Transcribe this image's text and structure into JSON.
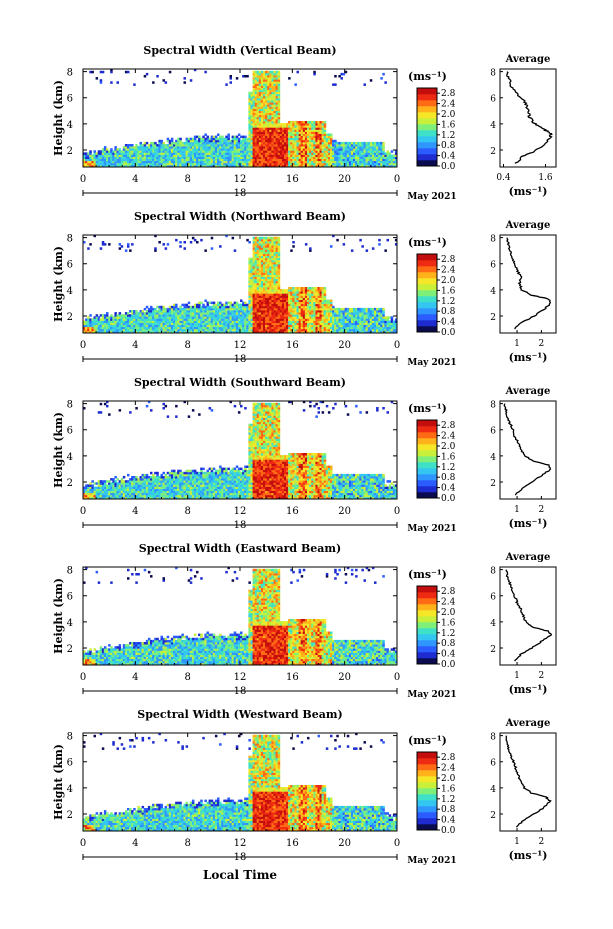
{
  "figure": {
    "xlabel": "Local Time",
    "date_label": "May 2021",
    "colorbar_unit": "(ms⁻¹)",
    "average_title": "Average",
    "average_unit": "(ms⁻¹)",
    "ylabel": "Height (km)"
  },
  "colormap": [
    "#0b0b50",
    "#1d2bd0",
    "#2a5cff",
    "#2f95ff",
    "#33c6f0",
    "#3fe0c8",
    "#7ef07a",
    "#c8f03a",
    "#f5e628",
    "#ffb21a",
    "#ff6a14",
    "#ee2a12",
    "#c40e0e"
  ],
  "chart_data": [
    {
      "type": "heatmap",
      "title": "Spectral Width (Vertical Beam)",
      "xlim": [
        0,
        24
      ],
      "ylim": [
        0.7,
        8.2
      ],
      "x_ticks": [
        "0",
        "4",
        "8",
        "12",
        "16",
        "20",
        "0"
      ],
      "x_ticks_values": [
        0,
        4,
        8,
        12,
        16,
        20,
        24
      ],
      "day_label": "18",
      "y_ticks": [
        "2",
        "4",
        "6",
        "8"
      ],
      "colorbar_ticks": [
        "0.0",
        "0.4",
        "0.8",
        "1.2",
        "1.6",
        "2.0",
        "2.4",
        "2.8"
      ],
      "clim": [
        0,
        3.0
      ],
      "average_profile": {
        "x_ticks": [
          "0.4",
          "1.6"
        ],
        "x_ticks_values": [
          0.4,
          1.6
        ],
        "xlim": [
          0.3,
          1.9
        ],
        "y_ticks": [
          "2",
          "4",
          "6",
          "8"
        ],
        "ylim": [
          0.7,
          8.2
        ],
        "height_km": [
          1.0,
          1.5,
          2.0,
          2.5,
          3.0,
          3.3,
          3.6,
          4.0,
          4.5,
          5.0,
          5.5,
          6.0,
          6.5,
          7.0,
          7.5,
          8.0
        ],
        "width": [
          0.75,
          0.95,
          1.35,
          1.6,
          1.75,
          1.75,
          1.55,
          1.3,
          1.15,
          1.1,
          1.05,
          0.9,
          0.7,
          0.6,
          0.55,
          0.5
        ]
      }
    },
    {
      "type": "heatmap",
      "title": "Spectral Width (Northward Beam)",
      "xlim": [
        0,
        24
      ],
      "ylim": [
        0.7,
        8.2
      ],
      "x_ticks": [
        "0",
        "4",
        "8",
        "12",
        "16",
        "20",
        "0"
      ],
      "x_ticks_values": [
        0,
        4,
        8,
        12,
        16,
        20,
        24
      ],
      "day_label": "18",
      "y_ticks": [
        "2",
        "4",
        "6",
        "8"
      ],
      "colorbar_ticks": [
        "0.0",
        "0.4",
        "0.8",
        "1.2",
        "1.6",
        "2.0",
        "2.4",
        "2.8"
      ],
      "clim": [
        0,
        3.0
      ],
      "average_profile": {
        "x_ticks": [
          "1",
          "2"
        ],
        "x_ticks_values": [
          1,
          2
        ],
        "xlim": [
          0.3,
          2.6
        ],
        "y_ticks": [
          "2",
          "4",
          "6",
          "8"
        ],
        "ylim": [
          0.7,
          8.2
        ],
        "height_km": [
          1.0,
          1.5,
          2.0,
          2.5,
          3.0,
          3.3,
          3.6,
          4.0,
          4.5,
          5.0,
          5.5,
          6.0,
          6.5,
          7.0,
          7.5,
          8.0
        ],
        "width": [
          0.9,
          1.2,
          1.7,
          2.1,
          2.4,
          2.3,
          1.6,
          1.2,
          1.1,
          1.15,
          1.0,
          0.9,
          0.8,
          0.7,
          0.65,
          0.6
        ]
      }
    },
    {
      "type": "heatmap",
      "title": "Spectral Width (Southward Beam)",
      "xlim": [
        0,
        24
      ],
      "ylim": [
        0.7,
        8.2
      ],
      "x_ticks": [
        "0",
        "4",
        "8",
        "12",
        "16",
        "20",
        "0"
      ],
      "x_ticks_values": [
        0,
        4,
        8,
        12,
        16,
        20,
        24
      ],
      "day_label": "18",
      "y_ticks": [
        "2",
        "4",
        "6",
        "8"
      ],
      "colorbar_ticks": [
        "0.0",
        "0.4",
        "0.8",
        "1.2",
        "1.6",
        "2.0",
        "2.4",
        "2.8"
      ],
      "clim": [
        0,
        3.0
      ],
      "average_profile": {
        "x_ticks": [
          "1",
          "2"
        ],
        "x_ticks_values": [
          1,
          2
        ],
        "xlim": [
          0.3,
          2.6
        ],
        "y_ticks": [
          "2",
          "4",
          "6",
          "8"
        ],
        "ylim": [
          0.7,
          8.2
        ],
        "height_km": [
          1.0,
          1.5,
          2.0,
          2.5,
          3.0,
          3.3,
          3.6,
          4.0,
          4.5,
          5.0,
          5.5,
          6.0,
          6.5,
          7.0,
          7.5,
          8.0
        ],
        "width": [
          0.95,
          1.2,
          1.6,
          2.0,
          2.4,
          2.3,
          1.7,
          1.3,
          1.15,
          1.05,
          0.9,
          0.85,
          0.7,
          0.6,
          0.55,
          0.5
        ]
      }
    },
    {
      "type": "heatmap",
      "title": "Spectral Width (Eastward Beam)",
      "xlim": [
        0,
        24
      ],
      "ylim": [
        0.7,
        8.2
      ],
      "x_ticks": [
        "0",
        "4",
        "8",
        "12",
        "16",
        "20",
        "0"
      ],
      "x_ticks_values": [
        0,
        4,
        8,
        12,
        16,
        20,
        24
      ],
      "day_label": "18",
      "y_ticks": [
        "2",
        "4",
        "6",
        "8"
      ],
      "colorbar_ticks": [
        "0.0",
        "0.4",
        "0.8",
        "1.2",
        "1.6",
        "2.0",
        "2.4",
        "2.8"
      ],
      "clim": [
        0,
        3.0
      ],
      "average_profile": {
        "x_ticks": [
          "1",
          "2"
        ],
        "x_ticks_values": [
          1,
          2
        ],
        "xlim": [
          0.3,
          2.6
        ],
        "y_ticks": [
          "2",
          "4",
          "6",
          "8"
        ],
        "ylim": [
          0.7,
          8.2
        ],
        "height_km": [
          1.0,
          1.5,
          2.0,
          2.5,
          3.0,
          3.3,
          3.6,
          4.0,
          4.5,
          5.0,
          5.5,
          6.0,
          6.5,
          7.0,
          7.5,
          8.0
        ],
        "width": [
          0.9,
          1.15,
          1.6,
          2.0,
          2.4,
          2.25,
          1.65,
          1.35,
          1.25,
          1.15,
          1.0,
          0.9,
          0.8,
          0.7,
          0.6,
          0.55
        ]
      }
    },
    {
      "type": "heatmap",
      "title": "Spectral Width (Westward Beam)",
      "xlim": [
        0,
        24
      ],
      "ylim": [
        0.7,
        8.2
      ],
      "x_ticks": [
        "0",
        "4",
        "8",
        "12",
        "16",
        "20",
        "0"
      ],
      "x_ticks_values": [
        0,
        4,
        8,
        12,
        16,
        20,
        24
      ],
      "day_label": "18",
      "y_ticks": [
        "2",
        "4",
        "6",
        "8"
      ],
      "colorbar_ticks": [
        "0.0",
        "0.4",
        "0.8",
        "1.2",
        "1.6",
        "2.0",
        "2.4",
        "2.8"
      ],
      "clim": [
        0,
        3.0
      ],
      "average_profile": {
        "x_ticks": [
          "1",
          "2"
        ],
        "x_ticks_values": [
          1,
          2
        ],
        "xlim": [
          0.3,
          2.6
        ],
        "y_ticks": [
          "2",
          "4",
          "6",
          "8"
        ],
        "ylim": [
          0.7,
          8.2
        ],
        "height_km": [
          1.0,
          1.5,
          2.0,
          2.5,
          3.0,
          3.3,
          3.6,
          4.0,
          4.5,
          5.0,
          5.5,
          6.0,
          6.5,
          7.0,
          7.5,
          8.0
        ],
        "width": [
          0.95,
          1.25,
          1.7,
          2.1,
          2.35,
          2.2,
          1.6,
          1.3,
          1.15,
          1.05,
          0.95,
          0.85,
          0.75,
          0.65,
          0.6,
          0.55
        ]
      }
    }
  ]
}
